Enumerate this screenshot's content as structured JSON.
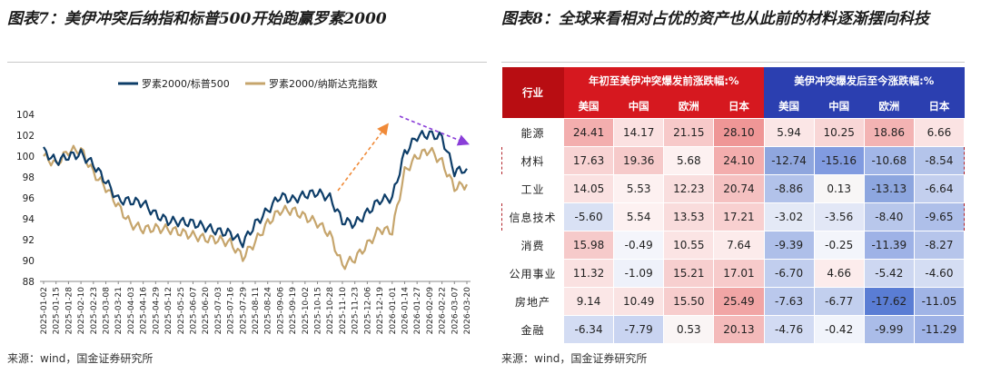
{
  "left": {
    "title": "图表7：美伊冲突后纳指和标普500开始跑赢罗素2000",
    "source": "来源：wind，国金证券研究所"
  },
  "right": {
    "title": "图表8：全球来看相对占优的资产也从此前的材料逐渐摆向科技",
    "source": "来源：wind，国金证券研究所"
  },
  "chart_data": {
    "type": "line",
    "title": "",
    "ylim": [
      88,
      104
    ],
    "yticks": [
      88,
      90,
      92,
      94,
      96,
      98,
      100,
      102,
      104
    ],
    "categories": [
      "2025-01-02",
      "2025-01-15",
      "2025-01-28",
      "2025-02-10",
      "2025-02-23",
      "2025-03-08",
      "2025-03-21",
      "2025-04-03",
      "2025-04-16",
      "2025-04-29",
      "2025-05-12",
      "2025-05-25",
      "2025-06-07",
      "2025-06-20",
      "2025-07-03",
      "2025-07-16",
      "2025-07-29",
      "2025-08-11",
      "2025-08-24",
      "2025-09-06",
      "2025-09-19",
      "2025-10-02",
      "2025-10-15",
      "2025-10-28",
      "2025-11-10",
      "2025-11-23",
      "2025-12-06",
      "2025-12-19",
      "2026-01-01",
      "2026-01-14",
      "2026-01-27",
      "2026-02-09",
      "2026-02-22",
      "2026-03-07",
      "2026-03-20"
    ],
    "series": [
      {
        "name": "罗素2000/标普500",
        "color": "#0d3d68",
        "values": [
          100.5,
          99.5,
          100.0,
          100.2,
          99.2,
          97.6,
          95.8,
          95.7,
          95.5,
          94.4,
          93.8,
          93.7,
          93.6,
          93.2,
          92.8,
          92.6,
          91.7,
          93.5,
          94.8,
          96.2,
          95.8,
          96.3,
          96.5,
          96.0,
          93.8,
          93.5,
          94.6,
          95.8,
          96.0,
          100.3,
          101.9,
          102.1,
          101.8,
          98.5,
          98.8
        ]
      },
      {
        "name": "罗素2000/纳斯达克指数",
        "color": "#c6a56c",
        "values": [
          100.0,
          99.2,
          100.5,
          100.6,
          98.4,
          97.0,
          95.2,
          93.5,
          93.0,
          93.1,
          93.0,
          92.7,
          92.4,
          92.1,
          92.0,
          91.7,
          90.3,
          91.8,
          93.6,
          94.8,
          94.8,
          94.2,
          93.6,
          92.5,
          89.5,
          90.2,
          91.5,
          93.0,
          92.8,
          98.5,
          100.0,
          100.6,
          99.4,
          97.0,
          97.3
        ]
      }
    ],
    "annotations": [
      "orange-dashed-arrow-up",
      "purple-dashed-arrow-down"
    ]
  },
  "table": {
    "header": {
      "industry": "行业",
      "group1": "年初至美伊冲突爆发前涨跌幅:%",
      "group2": "美伊冲突爆发后至今涨跌幅:%",
      "regions": [
        "美国",
        "中国",
        "欧洲",
        "日本",
        "美国",
        "中国",
        "欧洲",
        "日本"
      ]
    },
    "rows": [
      {
        "industry": "能源",
        "values": [
          "24.41",
          "14.17",
          "21.15",
          "28.10",
          "5.94",
          "10.25",
          "18.86",
          "6.66"
        ],
        "colors": [
          "#f3aeae",
          "#fbe1e1",
          "#f7c9c9",
          "#ef9696",
          "#fbe6e6",
          "#f8d6d6",
          "#f3b3b3",
          "#fbe3e3"
        ],
        "dashed": false
      },
      {
        "industry": "材料",
        "values": [
          "17.63",
          "19.36",
          "5.68",
          "24.10",
          "-12.74",
          "-15.16",
          "-10.68",
          "-8.54"
        ],
        "colors": [
          "#f8d3d3",
          "#f6caca",
          "#fdf1f1",
          "#f3adad",
          "#8fa6de",
          "#819be0",
          "#a2b6e7",
          "#b4c4ea"
        ],
        "dashed": true
      },
      {
        "industry": "工业",
        "values": [
          "14.05",
          "5.53",
          "12.23",
          "20.74"
        ],
        "values2": [
          "-8.86",
          "0.13",
          "-13.13",
          "-6.64"
        ],
        "dashed": false
      },
      {
        "industry": "信息技术",
        "values": [
          "-5.60",
          "5.54",
          "13.53",
          "17.21",
          "-3.02",
          "-3.56",
          "-8.40",
          "-9.65"
        ],
        "colors": [
          "#d9e1f4",
          "#fdf1f1",
          "#f9dcdc",
          "#f8d0d0",
          "#e4e9f6",
          "#e2e7f6",
          "#b8c7eb",
          "#aebfe9"
        ],
        "dashed": true
      },
      {
        "industry": "消费",
        "values": [
          "15.98",
          "-0.49",
          "10.55",
          "7.64",
          "-9.39",
          "-0.25",
          "-11.39",
          "-8.27"
        ],
        "colors": [
          "#f6caca",
          "#f4f5fb",
          "#fbe4e4",
          "#fcebeb",
          "#aebfe9",
          "#f3f5fb",
          "#9eb2e6",
          "#b6c5eb"
        ],
        "dashed": false
      },
      {
        "industry": "公用事业",
        "values": [
          "11.32",
          "-1.09",
          "15.21",
          "17.01",
          "-6.70",
          "4.66",
          "-5.42",
          "-4.60"
        ],
        "colors": [
          "#fae1e1",
          "#eef1fa",
          "#f7cfcf",
          "#f7cbcb",
          "#c1ceee",
          "#fcecec",
          "#cdd7f1",
          "#d4ddf3"
        ],
        "dashed": false
      },
      {
        "industry": "房地产",
        "values": [
          "9.14",
          "10.49",
          "15.50",
          "25.49",
          "-7.63",
          "-6.77",
          "-17.62",
          "-11.05"
        ],
        "colors": [
          "#fbe7e7",
          "#fae3e3",
          "#f7cdcd",
          "#f1a5a5",
          "#bac8ec",
          "#c2cfee",
          "#5a7dd4",
          "#a0b4e6"
        ],
        "dashed": false
      },
      {
        "industry": "金融",
        "values": [
          "-6.34",
          "-7.79",
          "0.53",
          "20.13",
          "-4.76",
          "-0.42",
          "-9.99",
          "-11.29"
        ],
        "colors": [
          "#d3dcf3",
          "#c9d4f1",
          "#faf5f5",
          "#f4baba",
          "#d2dbf3",
          "#f1f4fb",
          "#aabce8",
          "#9eb2e6"
        ],
        "dashed": false
      }
    ]
  }
}
